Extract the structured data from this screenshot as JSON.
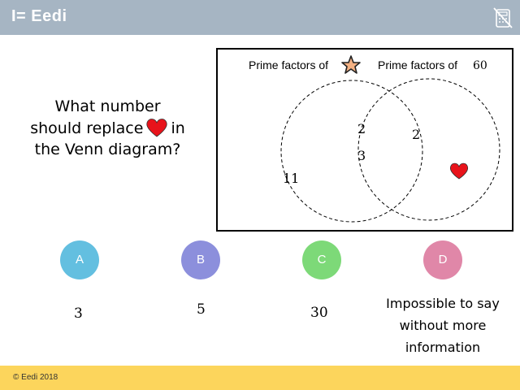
{
  "header": {
    "brand": "I= Eedi",
    "calculator_icon": "calculator-disabled-icon"
  },
  "question": {
    "line1": "What number",
    "line2_before": "should replace",
    "line2_after": "in",
    "line3": "the Venn diagram?",
    "symbol_icon": "heart-icon"
  },
  "venn": {
    "left_label": "Prime factors of",
    "left_symbol_icon": "star-icon",
    "right_label": "Prime factors of",
    "right_value": "60",
    "left_only": [
      "11"
    ],
    "intersection": [
      "2",
      "3"
    ],
    "right_only": [
      "2"
    ],
    "right_symbol_icon": "heart-icon"
  },
  "answers": [
    {
      "letter": "A",
      "text": "3",
      "color": "#63bfe0"
    },
    {
      "letter": "B",
      "text": "5",
      "color": "#8c8fdc"
    },
    {
      "letter": "C",
      "text": "30",
      "color": "#7dd978"
    },
    {
      "letter": "D",
      "text": [
        "Impossible to say",
        "without more",
        "information"
      ],
      "color": "#e087a8"
    }
  ],
  "footer": {
    "copyright": "© Eedi 2018"
  },
  "colors": {
    "header": "#a6b5c3",
    "footer": "#fcd55c",
    "heart": "#e8131b",
    "star": "#f4b183"
  }
}
